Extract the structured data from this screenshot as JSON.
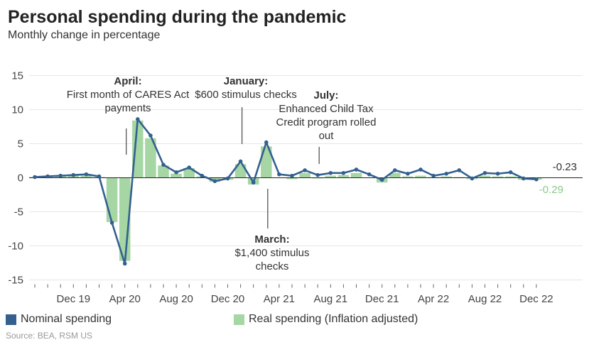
{
  "header": {
    "title": "Personal spending during the pandemic",
    "subtitle": "Monthly change in percentage"
  },
  "legend": {
    "nominal_label": "Nominal spending",
    "real_label": "Real spending (Inflation adjusted)"
  },
  "source": "Source: BEA, RSM US",
  "colors": {
    "nominal": "#34608f",
    "real": "#a5d6a4",
    "axis": "#333333",
    "grid": "#e6e6e6"
  },
  "chart_data": {
    "type": "bar",
    "title": "Personal spending during the pandemic",
    "subtitle": "Monthly change in percentage",
    "xlabel": "",
    "ylabel": "",
    "ylim": [
      -15,
      15
    ],
    "yticks": [
      15,
      10,
      5,
      0,
      -5,
      -10,
      -15
    ],
    "xtick_labels": [
      "Dec 19",
      "Apr 20",
      "Aug 20",
      "Dec 20",
      "Apr 21",
      "Aug 21",
      "Dec 21",
      "Apr 22",
      "Aug 22",
      "Dec 22"
    ],
    "xtick_indices": [
      3,
      7,
      11,
      15,
      19,
      23,
      27,
      31,
      35,
      39
    ],
    "grid": true,
    "legend_position": "bottom",
    "categories": [
      "Sep 19",
      "Oct 19",
      "Nov 19",
      "Dec 19",
      "Jan 20",
      "Feb 20",
      "Mar 20",
      "Apr 20",
      "May 20",
      "Jun 20",
      "Jul 20",
      "Aug 20",
      "Sep 20",
      "Oct 20",
      "Nov 20",
      "Dec 20",
      "Jan 21",
      "Feb 21",
      "Mar 21",
      "Apr 21",
      "May 21",
      "Jun 21",
      "Jul 21",
      "Aug 21",
      "Sep 21",
      "Oct 21",
      "Nov 21",
      "Dec 21",
      "Jan 22",
      "Feb 22",
      "Mar 22",
      "Apr 22",
      "May 22",
      "Jun 22",
      "Jul 22",
      "Aug 22",
      "Sep 22",
      "Oct 22",
      "Nov 22",
      "Dec 22"
    ],
    "series": [
      {
        "name": "Nominal spending",
        "type": "line",
        "values": [
          0.1,
          0.2,
          0.3,
          0.4,
          0.5,
          0.2,
          -6.6,
          -12.6,
          8.6,
          6.2,
          1.9,
          0.8,
          1.5,
          0.3,
          -0.5,
          -0.1,
          2.4,
          -0.7,
          5.2,
          0.5,
          0.3,
          1.1,
          0.4,
          0.7,
          0.7,
          1.2,
          0.5,
          -0.3,
          1.1,
          0.6,
          1.2,
          0.3,
          0.6,
          1.1,
          -0.1,
          0.7,
          0.6,
          0.8,
          -0.1,
          -0.23
        ]
      },
      {
        "name": "Real spending (Inflation adjusted)",
        "type": "bar",
        "values": [
          0.1,
          0.2,
          0.3,
          0.3,
          0.3,
          0.1,
          -6.5,
          -12.2,
          8.4,
          5.8,
          1.8,
          0.6,
          1.4,
          0.2,
          -0.6,
          -0.3,
          2.0,
          -1.0,
          4.6,
          0.0,
          -0.2,
          0.7,
          -0.1,
          0.3,
          0.4,
          0.7,
          0.0,
          -0.7,
          0.7,
          0.2,
          0.3,
          0.1,
          0.2,
          0.1,
          -0.2,
          0.3,
          0.2,
          0.2,
          -0.3,
          -0.29
        ]
      }
    ],
    "end_labels": {
      "nominal": "-0.23",
      "real": "-0.29"
    },
    "annotations": [
      {
        "index": 7,
        "bold": "April:",
        "lines": [
          "First month of CARES Act",
          "payments"
        ]
      },
      {
        "index": 16,
        "bold": "January:",
        "lines": [
          "$600 stimulus checks"
        ]
      },
      {
        "index": 22,
        "bold": "July:",
        "lines": [
          "Enhanced Child Tax",
          "Credit program rolled",
          "out"
        ]
      },
      {
        "index": 18,
        "bold": "March:",
        "lines": [
          "$1,400 stimulus",
          "checks"
        ]
      }
    ]
  }
}
